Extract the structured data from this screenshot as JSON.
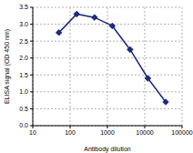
{
  "chart_data": {
    "type": "line",
    "xlabel": "Antibody dilution",
    "ylabel": "ELISA signal (OD 450 nm)",
    "x": [
      50,
      150,
      450,
      1350,
      4050,
      12150,
      36450
    ],
    "series": [
      {
        "name": "ELISA signal",
        "color": "#1f2a7a",
        "marker": "diamond",
        "values": [
          2.75,
          3.3,
          3.2,
          2.95,
          2.25,
          1.4,
          0.7
        ]
      }
    ],
    "log": "x",
    "xlim": [
      10,
      100000
    ],
    "xticks": [
      10,
      100,
      1000,
      10000,
      100000
    ],
    "ylim": [
      0,
      3.5
    ],
    "yticks": [
      {
        "value": 0,
        "label": "0.0"
      },
      0.5,
      {
        "value": 1,
        "label": "1.0"
      },
      1.5,
      {
        "value": 2,
        "label": "2.0"
      },
      2.5,
      {
        "value": 3,
        "label": "3.0"
      },
      3.5
    ],
    "grid": true
  }
}
